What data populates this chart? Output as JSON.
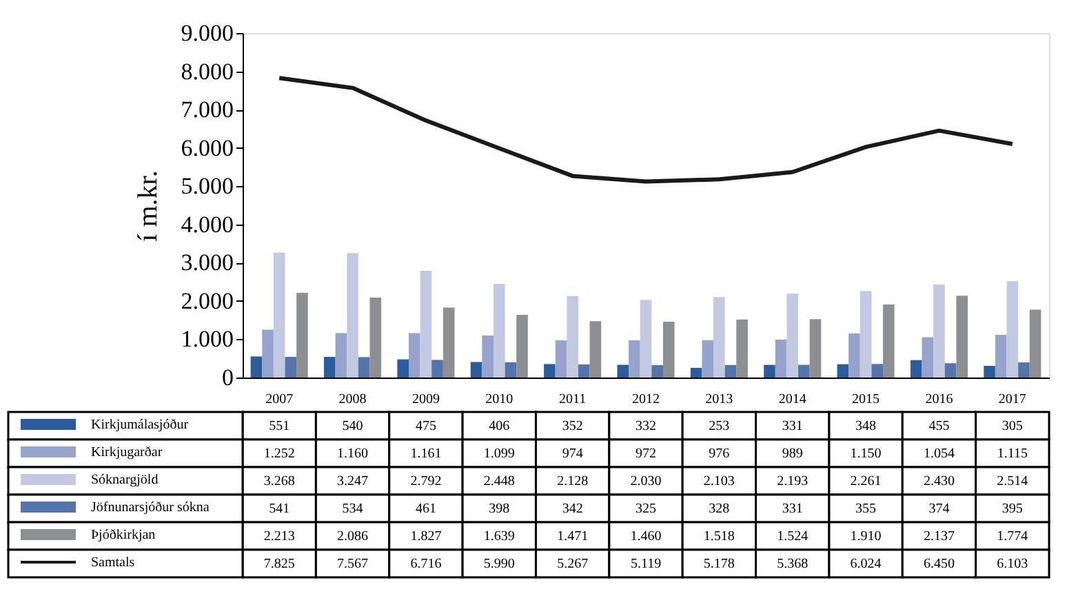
{
  "chart_data": {
    "type": "bar",
    "ylabel": "í m.kr.",
    "categories": [
      "2007",
      "2008",
      "2009",
      "2010",
      "2011",
      "2012",
      "2013",
      "2014",
      "2015",
      "2016",
      "2017"
    ],
    "ylim": [
      0,
      9000
    ],
    "yticks": [
      {
        "value": 0,
        "label": "0"
      },
      {
        "value": 1000,
        "label": "1.000"
      },
      {
        "value": 2000,
        "label": "2.000"
      },
      {
        "value": 3000,
        "label": "3.000"
      },
      {
        "value": 4000,
        "label": "4.000"
      },
      {
        "value": 5000,
        "label": "5.000"
      },
      {
        "value": 6000,
        "label": "6.000"
      },
      {
        "value": 7000,
        "label": "7.000"
      },
      {
        "value": 8000,
        "label": "8.000"
      },
      {
        "value": 9000,
        "label": "9.000"
      }
    ],
    "grid": false,
    "legend": "bottom",
    "series": [
      {
        "name": "Kirkjumálasjóður",
        "color": "#2b5c9b",
        "values": [
          551,
          540,
          475,
          406,
          352,
          332,
          253,
          331,
          348,
          455,
          305
        ],
        "value_labels": [
          "551",
          "540",
          "475",
          "406",
          "352",
          "332",
          "253",
          "331",
          "348",
          "455",
          "305"
        ]
      },
      {
        "name": "Kirkjugarðar",
        "color": "#95a3cd",
        "values": [
          1252,
          1160,
          1161,
          1099,
          974,
          972,
          976,
          989,
          1150,
          1054,
          1115
        ],
        "value_labels": [
          "1.252",
          "1.160",
          "1.161",
          "1.099",
          "974",
          "972",
          "976",
          "989",
          "1.150",
          "1.054",
          "1.115"
        ]
      },
      {
        "name": "Sóknargjöld",
        "color": "#c3c9e1",
        "values": [
          3268,
          3247,
          2792,
          2448,
          2128,
          2030,
          2103,
          2193,
          2261,
          2430,
          2514
        ],
        "value_labels": [
          "3.268",
          "3.247",
          "2.792",
          "2.448",
          "2.128",
          "2.030",
          "2.103",
          "2.193",
          "2.261",
          "2.430",
          "2.514"
        ]
      },
      {
        "name": "Jöfnunarsjóður sókna",
        "color": "#5474ac",
        "values": [
          541,
          534,
          461,
          398,
          342,
          325,
          328,
          331,
          355,
          374,
          395
        ],
        "value_labels": [
          "541",
          "534",
          "461",
          "398",
          "342",
          "325",
          "328",
          "331",
          "355",
          "374",
          "395"
        ]
      },
      {
        "name": "Þjóðkirkjan",
        "color": "#8e8f93",
        "values": [
          2213,
          2086,
          1827,
          1639,
          1471,
          1460,
          1518,
          1524,
          1910,
          2137,
          1774
        ],
        "value_labels": [
          "2.213",
          "2.086",
          "1.827",
          "1.639",
          "1.471",
          "1.460",
          "1.518",
          "1.524",
          "1.910",
          "2.137",
          "1.774"
        ]
      },
      {
        "name": "Samtals",
        "type": "line",
        "color": "#1a1a1a",
        "line_style": "solid",
        "values": [
          7825,
          7567,
          6716,
          5990,
          5267,
          5119,
          5178,
          5368,
          6024,
          6450,
          6103
        ],
        "value_labels": [
          "7.825",
          "7.567",
          "6.716",
          "5.990",
          "5.267",
          "5.119",
          "5.178",
          "5.368",
          "6.024",
          "6.450",
          "6.103"
        ]
      }
    ]
  }
}
